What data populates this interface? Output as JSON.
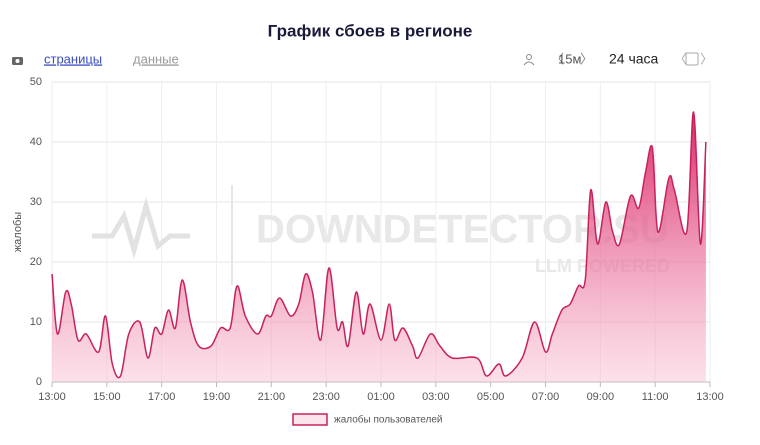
{
  "chart_data": {
    "type": "area",
    "title": "График сбоев в регионе",
    "toolbar": {
      "tabs": [
        "страницы",
        "данные"
      ],
      "interval": "15м",
      "range": "24 часа"
    },
    "watermark": [
      "DOWNDETECTOR.SU",
      "LLM POWERED"
    ],
    "ylabel": "жалобы",
    "x": [
      0,
      0.2,
      0.5,
      0.7,
      0.95,
      1.25,
      1.7,
      1.95,
      2.2,
      2.5,
      2.8,
      3.2,
      3.5,
      3.75,
      4.0,
      4.25,
      4.5,
      4.75,
      5.05,
      5.35,
      5.8,
      6.15,
      6.5,
      6.75,
      7.05,
      7.5,
      7.8,
      8.0,
      8.3,
      8.7,
      9.0,
      9.25,
      9.5,
      9.8,
      10.1,
      10.4,
      10.6,
      10.8,
      11.1,
      11.35,
      11.6,
      12.0,
      12.3,
      12.5,
      12.8,
      13.15,
      13.35,
      13.8,
      14.15,
      14.6,
      15.5,
      15.85,
      16.3,
      16.55,
      17.15,
      17.6,
      18.0,
      18.25,
      18.6,
      18.9,
      19.2,
      19.45,
      19.65,
      19.9,
      20.2,
      20.45,
      20.7,
      21.1,
      21.4,
      21.65,
      21.9,
      22.1,
      22.5,
      22.7,
      23.15,
      23.4,
      23.65,
      23.85
    ],
    "series": [
      {
        "name": "жалобы пользователей",
        "color": "#c8215d",
        "values": [
          18,
          8,
          15,
          13,
          7,
          8,
          5,
          11,
          3,
          1,
          8,
          10,
          4,
          9,
          8,
          12,
          9,
          17,
          10,
          6,
          6,
          9,
          9,
          16,
          11,
          8,
          11,
          11,
          14,
          11,
          13,
          18,
          15,
          7,
          19,
          9,
          10,
          6,
          15,
          8,
          13,
          7,
          13,
          7,
          9,
          6,
          4,
          8,
          6,
          4,
          4,
          1,
          3,
          1,
          4,
          10,
          5,
          8,
          12,
          13,
          16,
          17,
          32,
          23,
          30,
          25,
          23,
          31,
          29,
          35,
          39,
          25,
          34,
          32,
          25,
          45,
          23,
          40
        ]
      }
    ],
    "xlim": [
      0,
      24
    ],
    "xticks": [
      {
        "value": 0,
        "label": "13:00"
      },
      {
        "value": 2,
        "label": "15:00"
      },
      {
        "value": 4,
        "label": "17:00"
      },
      {
        "value": 6,
        "label": "19:00"
      },
      {
        "value": 8,
        "label": "21:00"
      },
      {
        "value": 10,
        "label": "23:00"
      },
      {
        "value": 12,
        "label": "01:00"
      },
      {
        "value": 14,
        "label": "03:00"
      },
      {
        "value": 16,
        "label": "05:00"
      },
      {
        "value": 18,
        "label": "07:00"
      },
      {
        "value": 20,
        "label": "09:00"
      },
      {
        "value": 22,
        "label": "11:00"
      },
      {
        "value": 24,
        "label": "13:00"
      }
    ],
    "ylim": [
      0,
      50
    ],
    "yticks": [
      0,
      10,
      20,
      30,
      40,
      50
    ],
    "grid": true
  }
}
